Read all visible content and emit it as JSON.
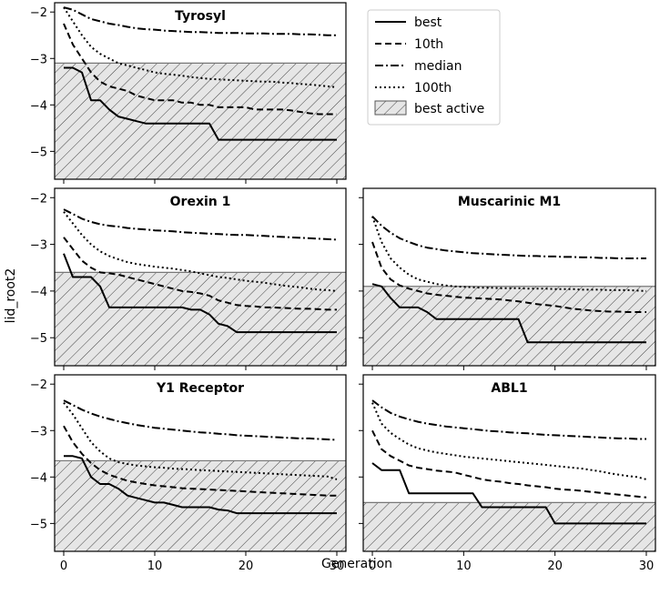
{
  "figure": {
    "xlabel": "Generation",
    "ylabel": "lid_root2"
  },
  "legend": {
    "placement": "top-right",
    "entries": [
      {
        "key": "best",
        "label": "best"
      },
      {
        "key": "p10",
        "label": "10th"
      },
      {
        "key": "median",
        "label": "median"
      },
      {
        "key": "p100",
        "label": "100th"
      },
      {
        "key": "best_active",
        "label": "best active"
      }
    ]
  },
  "chart_data": [
    {
      "type": "line",
      "title": "Tyrosyl",
      "xlim": [
        -1,
        31
      ],
      "ylim": [
        -5.6,
        -1.8
      ],
      "xticks": [
        "0",
        "10",
        "20",
        "30"
      ],
      "xtick_values": [
        0,
        10,
        20,
        30
      ],
      "yticks": [
        "-2",
        "-3",
        "-4",
        "-5"
      ],
      "ytick_values": [
        -2,
        -3,
        -4,
        -5
      ],
      "best_active": -3.1,
      "show_xtick_labels": false,
      "show_ytick_labels": true,
      "x": [
        0,
        1,
        2,
        3,
        4,
        5,
        6,
        7,
        8,
        9,
        10,
        11,
        12,
        13,
        14,
        15,
        16,
        17,
        18,
        19,
        20,
        21,
        22,
        23,
        24,
        25,
        26,
        27,
        28,
        29,
        30
      ],
      "series": [
        {
          "key": "best",
          "values": [
            -3.2,
            -3.2,
            -3.3,
            -3.9,
            -3.9,
            -4.1,
            -4.25,
            -4.3,
            -4.35,
            -4.4,
            -4.4,
            -4.4,
            -4.4,
            -4.4,
            -4.4,
            -4.4,
            -4.4,
            -4.75,
            -4.75,
            -4.75,
            -4.75,
            -4.75,
            -4.75,
            -4.75,
            -4.75,
            -4.75,
            -4.75,
            -4.75,
            -4.75,
            -4.75,
            -4.75
          ]
        },
        {
          "key": "p10",
          "values": [
            -2.25,
            -2.7,
            -3.0,
            -3.3,
            -3.5,
            -3.6,
            -3.65,
            -3.7,
            -3.8,
            -3.85,
            -3.9,
            -3.9,
            -3.9,
            -3.95,
            -3.95,
            -4.0,
            -4.0,
            -4.05,
            -4.05,
            -4.05,
            -4.05,
            -4.1,
            -4.1,
            -4.1,
            -4.1,
            -4.12,
            -4.15,
            -4.18,
            -4.2,
            -4.2,
            -4.2
          ]
        },
        {
          "key": "median",
          "values": [
            -1.9,
            -1.95,
            -2.05,
            -2.15,
            -2.2,
            -2.25,
            -2.28,
            -2.32,
            -2.35,
            -2.37,
            -2.38,
            -2.4,
            -2.41,
            -2.42,
            -2.43,
            -2.43,
            -2.44,
            -2.45,
            -2.45,
            -2.45,
            -2.46,
            -2.46,
            -2.46,
            -2.47,
            -2.47,
            -2.47,
            -2.48,
            -2.48,
            -2.49,
            -2.5,
            -2.5
          ]
        },
        {
          "key": "p100",
          "values": [
            -1.9,
            -2.2,
            -2.5,
            -2.75,
            -2.9,
            -3.0,
            -3.1,
            -3.15,
            -3.2,
            -3.25,
            -3.3,
            -3.33,
            -3.35,
            -3.37,
            -3.4,
            -3.42,
            -3.44,
            -3.45,
            -3.46,
            -3.47,
            -3.48,
            -3.49,
            -3.5,
            -3.5,
            -3.52,
            -3.53,
            -3.55,
            -3.56,
            -3.58,
            -3.6,
            -3.62
          ]
        }
      ]
    },
    {
      "type": "line",
      "title": "Orexin 1",
      "xlim": [
        -1,
        31
      ],
      "ylim": [
        -5.6,
        -1.8
      ],
      "xticks": [
        "0",
        "10",
        "20",
        "30"
      ],
      "xtick_values": [
        0,
        10,
        20,
        30
      ],
      "yticks": [
        "-2",
        "-3",
        "-4",
        "-5"
      ],
      "ytick_values": [
        -2,
        -3,
        -4,
        -5
      ],
      "best_active": -3.6,
      "show_xtick_labels": false,
      "show_ytick_labels": true,
      "x": [
        0,
        1,
        2,
        3,
        4,
        5,
        6,
        7,
        8,
        9,
        10,
        11,
        12,
        13,
        14,
        15,
        16,
        17,
        18,
        19,
        20,
        21,
        22,
        23,
        24,
        25,
        26,
        27,
        28,
        29,
        30
      ],
      "series": [
        {
          "key": "best",
          "values": [
            -3.2,
            -3.7,
            -3.7,
            -3.7,
            -3.9,
            -4.35,
            -4.35,
            -4.35,
            -4.35,
            -4.35,
            -4.35,
            -4.35,
            -4.35,
            -4.35,
            -4.4,
            -4.4,
            -4.5,
            -4.7,
            -4.75,
            -4.88,
            -4.88,
            -4.88,
            -4.88,
            -4.88,
            -4.88,
            -4.88,
            -4.88,
            -4.88,
            -4.88,
            -4.88,
            -4.88
          ]
        },
        {
          "key": "p10",
          "values": [
            -2.85,
            -3.1,
            -3.35,
            -3.5,
            -3.6,
            -3.62,
            -3.65,
            -3.7,
            -3.75,
            -3.8,
            -3.85,
            -3.9,
            -3.95,
            -4.0,
            -4.02,
            -4.05,
            -4.1,
            -4.2,
            -4.25,
            -4.3,
            -4.32,
            -4.33,
            -4.35,
            -4.35,
            -4.36,
            -4.37,
            -4.38,
            -4.38,
            -4.39,
            -4.4,
            -4.4
          ]
        },
        {
          "key": "median",
          "values": [
            -2.25,
            -2.35,
            -2.45,
            -2.52,
            -2.57,
            -2.6,
            -2.62,
            -2.65,
            -2.67,
            -2.68,
            -2.7,
            -2.71,
            -2.72,
            -2.74,
            -2.75,
            -2.76,
            -2.77,
            -2.78,
            -2.79,
            -2.8,
            -2.8,
            -2.81,
            -2.82,
            -2.83,
            -2.84,
            -2.85,
            -2.86,
            -2.87,
            -2.88,
            -2.89,
            -2.9
          ]
        },
        {
          "key": "p100",
          "values": [
            -2.3,
            -2.55,
            -2.8,
            -3.0,
            -3.15,
            -3.25,
            -3.32,
            -3.38,
            -3.42,
            -3.45,
            -3.48,
            -3.5,
            -3.52,
            -3.55,
            -3.58,
            -3.62,
            -3.66,
            -3.7,
            -3.72,
            -3.75,
            -3.78,
            -3.8,
            -3.82,
            -3.85,
            -3.88,
            -3.9,
            -3.92,
            -3.95,
            -3.97,
            -3.98,
            -4.0
          ]
        }
      ]
    },
    {
      "type": "line",
      "title": "Muscarinic M1",
      "xlim": [
        -1,
        31
      ],
      "ylim": [
        -5.6,
        -1.8
      ],
      "xticks": [
        "0",
        "10",
        "20",
        "30"
      ],
      "xtick_values": [
        0,
        10,
        20,
        30
      ],
      "yticks": [
        "-2",
        "-3",
        "-4",
        "-5"
      ],
      "ytick_values": [
        -2,
        -3,
        -4,
        -5
      ],
      "best_active": -3.9,
      "show_xtick_labels": false,
      "show_ytick_labels": false,
      "x": [
        0,
        1,
        2,
        3,
        4,
        5,
        6,
        7,
        8,
        9,
        10,
        11,
        12,
        13,
        14,
        15,
        16,
        17,
        18,
        19,
        20,
        21,
        22,
        23,
        24,
        25,
        26,
        27,
        28,
        29,
        30
      ],
      "series": [
        {
          "key": "best",
          "values": [
            -3.85,
            -3.9,
            -4.15,
            -4.35,
            -4.35,
            -4.35,
            -4.45,
            -4.6,
            -4.6,
            -4.6,
            -4.6,
            -4.6,
            -4.6,
            -4.6,
            -4.6,
            -4.6,
            -4.6,
            -5.1,
            -5.1,
            -5.1,
            -5.1,
            -5.1,
            -5.1,
            -5.1,
            -5.1,
            -5.1,
            -5.1,
            -5.1,
            -5.1,
            -5.1,
            -5.1
          ]
        },
        {
          "key": "p10",
          "values": [
            -2.95,
            -3.5,
            -3.75,
            -3.88,
            -3.95,
            -4.0,
            -4.05,
            -4.08,
            -4.1,
            -4.12,
            -4.14,
            -4.15,
            -4.16,
            -4.17,
            -4.18,
            -4.2,
            -4.22,
            -4.25,
            -4.28,
            -4.3,
            -4.32,
            -4.35,
            -4.38,
            -4.4,
            -4.42,
            -4.43,
            -4.44,
            -4.44,
            -4.45,
            -4.45,
            -4.45
          ]
        },
        {
          "key": "median",
          "values": [
            -2.4,
            -2.6,
            -2.75,
            -2.87,
            -2.95,
            -3.02,
            -3.07,
            -3.1,
            -3.13,
            -3.15,
            -3.17,
            -3.19,
            -3.2,
            -3.21,
            -3.22,
            -3.23,
            -3.24,
            -3.25,
            -3.25,
            -3.26,
            -3.26,
            -3.27,
            -3.27,
            -3.28,
            -3.28,
            -3.29,
            -3.29,
            -3.3,
            -3.3,
            -3.3,
            -3.3
          ]
        },
        {
          "key": "p100",
          "values": [
            -2.4,
            -2.95,
            -3.3,
            -3.5,
            -3.65,
            -3.75,
            -3.8,
            -3.85,
            -3.88,
            -3.9,
            -3.91,
            -3.92,
            -3.93,
            -3.93,
            -3.94,
            -3.94,
            -3.94,
            -3.95,
            -3.95,
            -3.95,
            -3.96,
            -3.96,
            -3.96,
            -3.97,
            -3.97,
            -3.97,
            -3.98,
            -3.98,
            -3.98,
            -3.99,
            -4.0
          ]
        }
      ]
    },
    {
      "type": "line",
      "title": "Y1 Receptor",
      "xlim": [
        -1,
        31
      ],
      "ylim": [
        -5.6,
        -1.8
      ],
      "xticks": [
        "0",
        "10",
        "20",
        "30"
      ],
      "xtick_values": [
        0,
        10,
        20,
        30
      ],
      "yticks": [
        "-2",
        "-3",
        "-4",
        "-5"
      ],
      "ytick_values": [
        -2,
        -3,
        -4,
        -5
      ],
      "best_active": -3.65,
      "show_xtick_labels": true,
      "show_ytick_labels": true,
      "x": [
        0,
        1,
        2,
        3,
        4,
        5,
        6,
        7,
        8,
        9,
        10,
        11,
        12,
        13,
        14,
        15,
        16,
        17,
        18,
        19,
        20,
        21,
        22,
        23,
        24,
        25,
        26,
        27,
        28,
        29,
        30
      ],
      "series": [
        {
          "key": "best",
          "values": [
            -3.55,
            -3.55,
            -3.6,
            -4.0,
            -4.15,
            -4.15,
            -4.25,
            -4.4,
            -4.45,
            -4.5,
            -4.55,
            -4.55,
            -4.6,
            -4.65,
            -4.65,
            -4.65,
            -4.65,
            -4.7,
            -4.72,
            -4.78,
            -4.78,
            -4.78,
            -4.78,
            -4.78,
            -4.78,
            -4.78,
            -4.78,
            -4.78,
            -4.78,
            -4.78,
            -4.78
          ]
        },
        {
          "key": "p10",
          "values": [
            -2.9,
            -3.25,
            -3.5,
            -3.7,
            -3.85,
            -3.95,
            -4.02,
            -4.08,
            -4.12,
            -4.15,
            -4.18,
            -4.2,
            -4.22,
            -4.24,
            -4.25,
            -4.26,
            -4.27,
            -4.28,
            -4.29,
            -4.3,
            -4.31,
            -4.32,
            -4.33,
            -4.34,
            -4.35,
            -4.36,
            -4.37,
            -4.38,
            -4.39,
            -4.4,
            -4.4
          ]
        },
        {
          "key": "median",
          "values": [
            -2.35,
            -2.45,
            -2.55,
            -2.63,
            -2.7,
            -2.75,
            -2.8,
            -2.84,
            -2.88,
            -2.91,
            -2.94,
            -2.96,
            -2.98,
            -3.0,
            -3.02,
            -3.04,
            -3.05,
            -3.07,
            -3.08,
            -3.1,
            -3.11,
            -3.12,
            -3.13,
            -3.14,
            -3.15,
            -3.16,
            -3.17,
            -3.17,
            -3.18,
            -3.19,
            -3.2
          ]
        },
        {
          "key": "p100",
          "values": [
            -2.4,
            -2.65,
            -2.95,
            -3.25,
            -3.45,
            -3.6,
            -3.68,
            -3.72,
            -3.75,
            -3.77,
            -3.79,
            -3.8,
            -3.82,
            -3.83,
            -3.84,
            -3.85,
            -3.86,
            -3.87,
            -3.88,
            -3.89,
            -3.9,
            -3.91,
            -3.92,
            -3.93,
            -3.94,
            -3.95,
            -3.96,
            -3.97,
            -3.98,
            -3.99,
            -4.05
          ]
        }
      ]
    },
    {
      "type": "line",
      "title": "ABL1",
      "xlim": [
        -1,
        31
      ],
      "ylim": [
        -5.6,
        -1.8
      ],
      "xticks": [
        "0",
        "10",
        "20",
        "30"
      ],
      "xtick_values": [
        0,
        10,
        20,
        30
      ],
      "yticks": [
        "-2",
        "-3",
        "-4",
        "-5"
      ],
      "ytick_values": [
        -2,
        -3,
        -4,
        -5
      ],
      "best_active": -4.55,
      "show_xtick_labels": true,
      "show_ytick_labels": false,
      "x": [
        0,
        1,
        2,
        3,
        4,
        5,
        6,
        7,
        8,
        9,
        10,
        11,
        12,
        13,
        14,
        15,
        16,
        17,
        18,
        19,
        20,
        21,
        22,
        23,
        24,
        25,
        26,
        27,
        28,
        29,
        30
      ],
      "series": [
        {
          "key": "best",
          "values": [
            -3.7,
            -3.85,
            -3.85,
            -3.85,
            -4.35,
            -4.35,
            -4.35,
            -4.35,
            -4.35,
            -4.35,
            -4.35,
            -4.35,
            -4.65,
            -4.65,
            -4.65,
            -4.65,
            -4.65,
            -4.65,
            -4.65,
            -4.65,
            -5.0,
            -5.0,
            -5.0,
            -5.0,
            -5.0,
            -5.0,
            -5.0,
            -5.0,
            -5.0,
            -5.0,
            -5.0
          ]
        },
        {
          "key": "p10",
          "values": [
            -3.0,
            -3.4,
            -3.55,
            -3.65,
            -3.75,
            -3.8,
            -3.83,
            -3.86,
            -3.88,
            -3.9,
            -3.95,
            -4.0,
            -4.05,
            -4.08,
            -4.1,
            -4.13,
            -4.15,
            -4.18,
            -4.2,
            -4.22,
            -4.25,
            -4.27,
            -4.28,
            -4.3,
            -4.32,
            -4.34,
            -4.36,
            -4.38,
            -4.4,
            -4.42,
            -4.44
          ]
        },
        {
          "key": "median",
          "values": [
            -2.35,
            -2.5,
            -2.62,
            -2.7,
            -2.76,
            -2.81,
            -2.85,
            -2.88,
            -2.91,
            -2.93,
            -2.95,
            -2.97,
            -2.99,
            -3.01,
            -3.02,
            -3.04,
            -3.05,
            -3.06,
            -3.08,
            -3.09,
            -3.1,
            -3.11,
            -3.12,
            -3.13,
            -3.14,
            -3.15,
            -3.16,
            -3.17,
            -3.17,
            -3.18,
            -3.18
          ]
        },
        {
          "key": "p100",
          "values": [
            -2.4,
            -2.85,
            -3.05,
            -3.18,
            -3.3,
            -3.38,
            -3.43,
            -3.47,
            -3.5,
            -3.53,
            -3.56,
            -3.58,
            -3.6,
            -3.62,
            -3.64,
            -3.66,
            -3.68,
            -3.7,
            -3.72,
            -3.74,
            -3.76,
            -3.78,
            -3.8,
            -3.82,
            -3.85,
            -3.88,
            -3.92,
            -3.95,
            -3.98,
            -4.0,
            -4.05
          ]
        }
      ]
    }
  ]
}
